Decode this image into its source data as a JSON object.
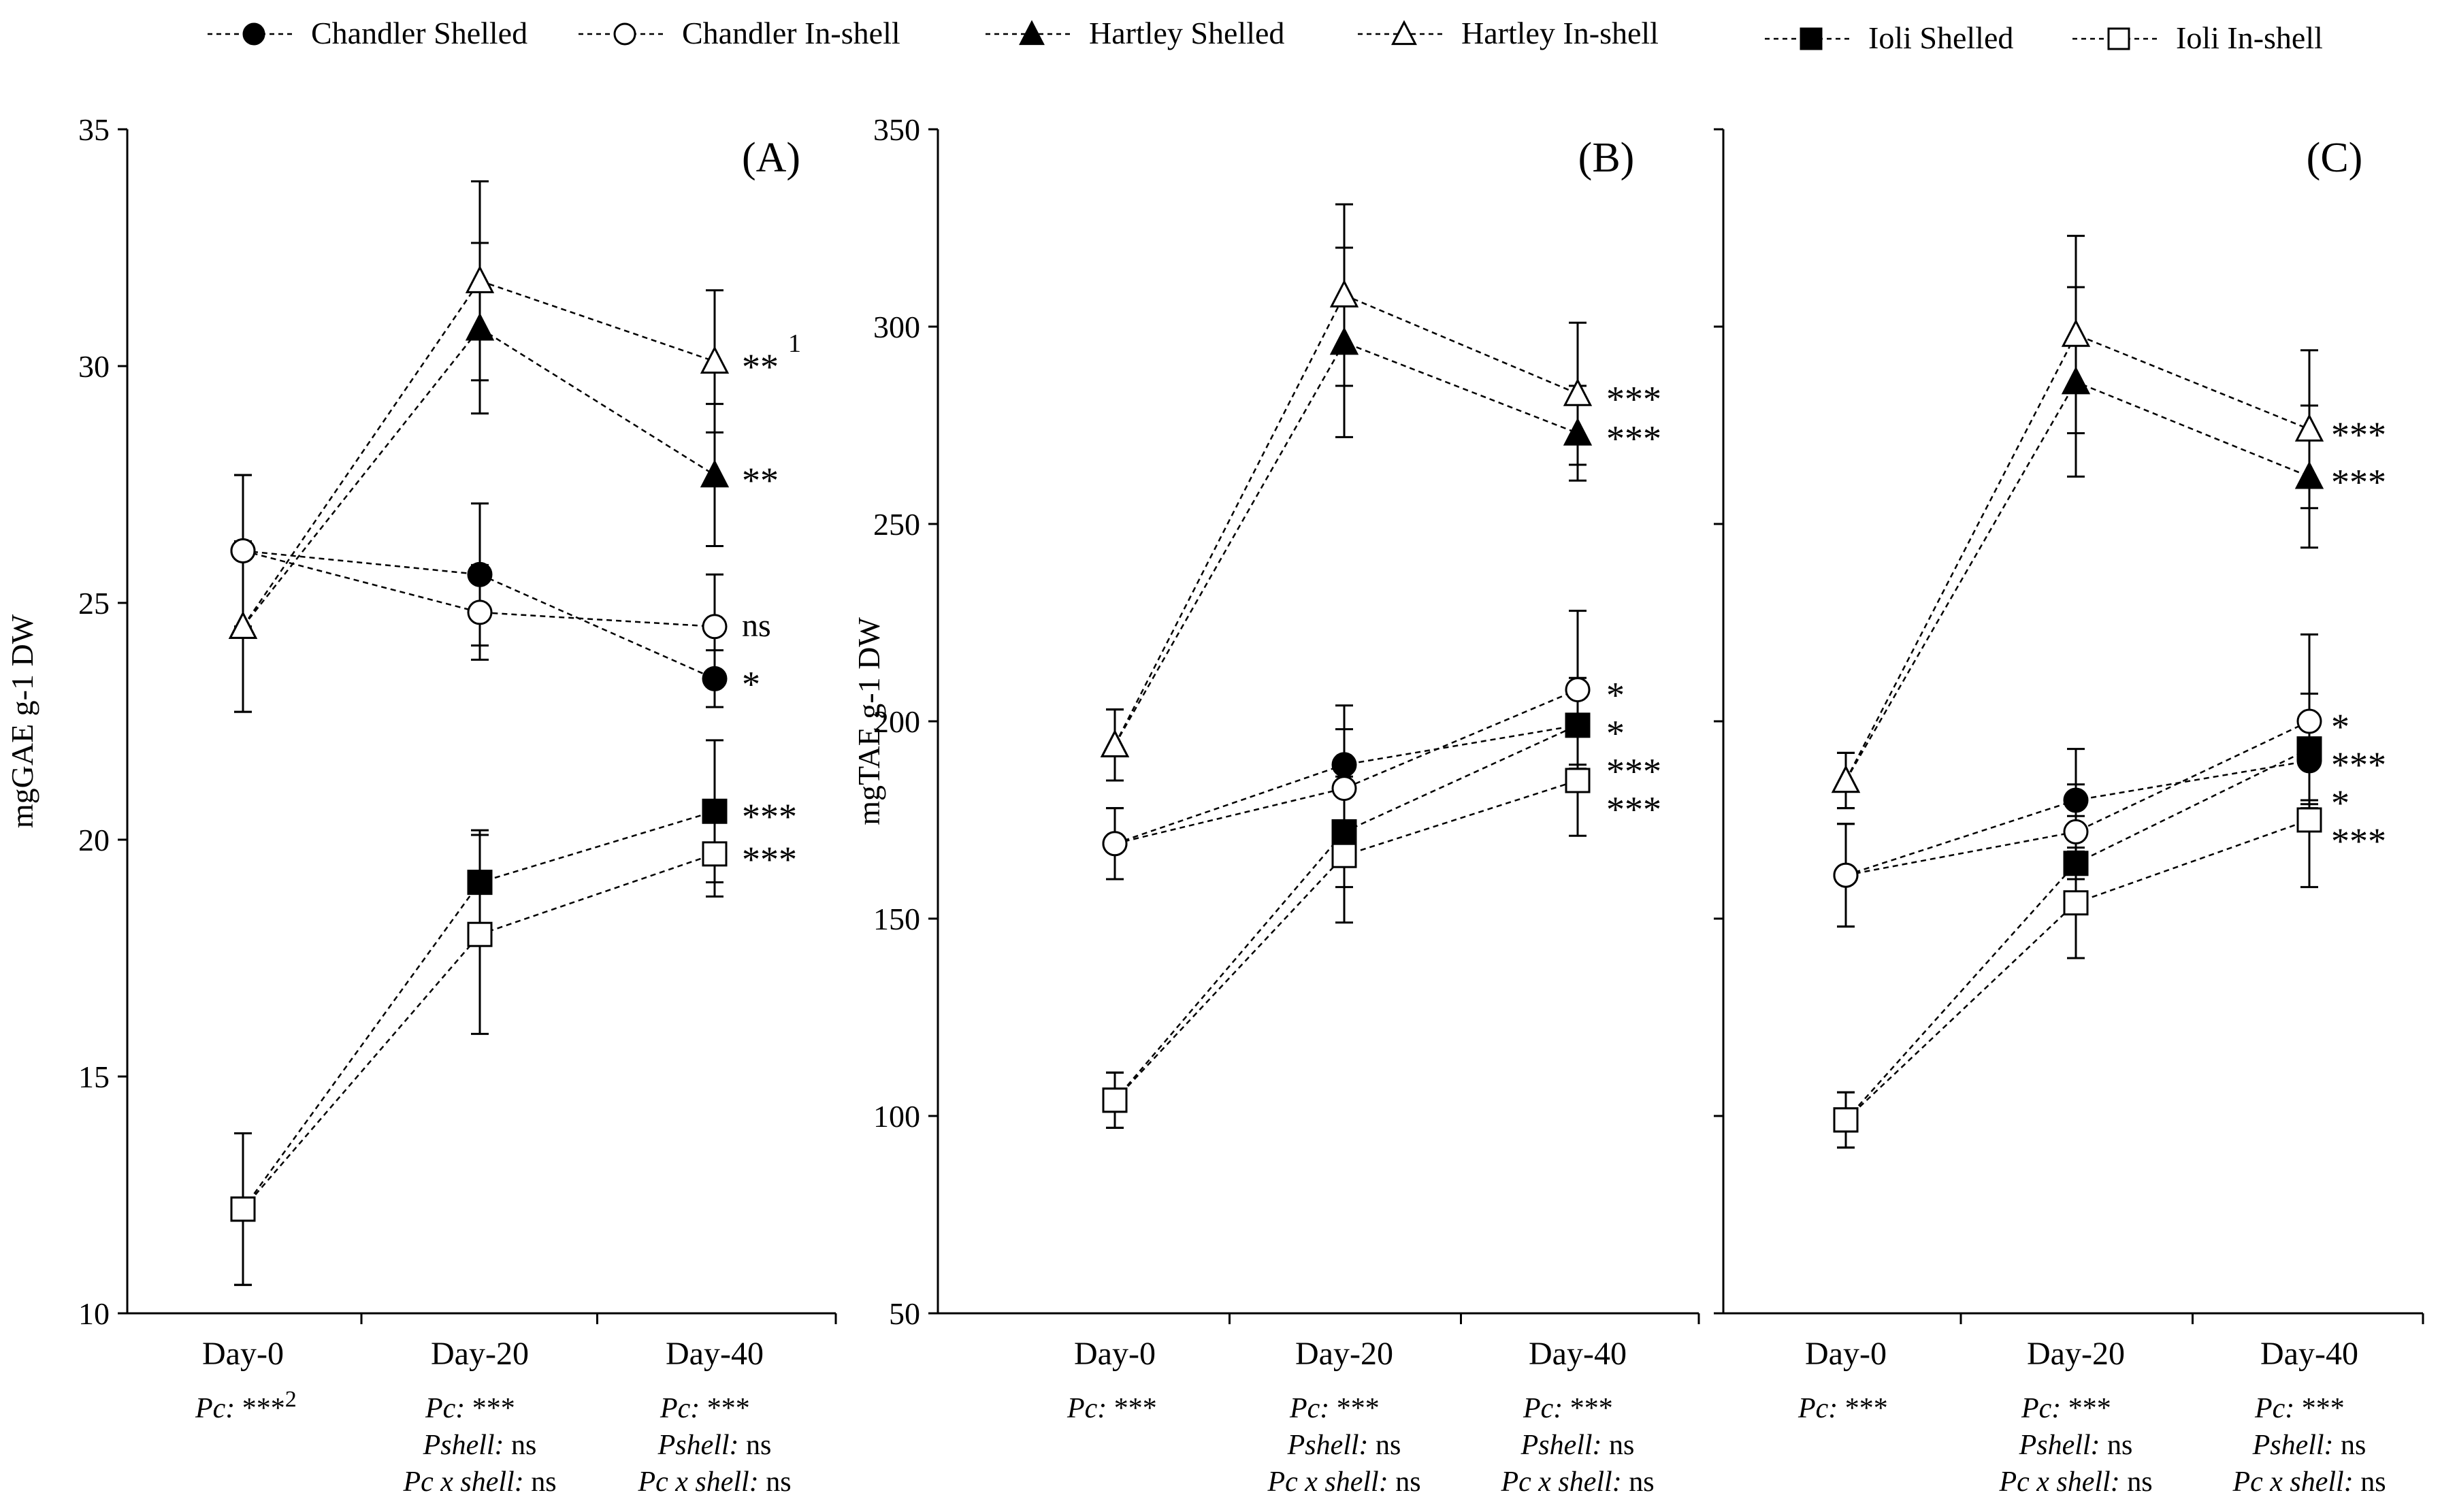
{
  "legend": [
    {
      "label": "Chandler Shelled",
      "marker": "circle",
      "filled": true
    },
    {
      "label": "Chandler In-shell",
      "marker": "circle",
      "filled": false
    },
    {
      "label": "Hartley Shelled",
      "marker": "triangle",
      "filled": true
    },
    {
      "label": "Hartley In-shell",
      "marker": "triangle",
      "filled": false
    },
    {
      "label": "Ioli Shelled",
      "marker": "square",
      "filled": true
    },
    {
      "label": "Ioli In-shell",
      "marker": "square",
      "filled": false
    }
  ],
  "colors": {
    "line": "#000000",
    "background": "#ffffff"
  },
  "chart_data": [
    {
      "type": "line",
      "panel": "(A)",
      "ylabel": "mgGAE g-1 DW",
      "ylim": [
        10,
        35
      ],
      "yticks": [
        "10",
        "15",
        "20",
        "25",
        "30",
        "35"
      ],
      "categories": [
        "Day-0",
        "Day-20",
        "Day-40"
      ],
      "series": [
        {
          "name": "Chandler Shelled",
          "values": [
            26.1,
            25.6,
            23.4
          ],
          "errors": [
            1.6,
            1.5,
            0.6
          ],
          "sig": "*"
        },
        {
          "name": "Chandler In-shell",
          "values": [
            26.1,
            24.8,
            24.5
          ],
          "errors": [
            1.6,
            1.0,
            1.1
          ],
          "sig": "ns"
        },
        {
          "name": "Hartley Shelled",
          "values": [
            24.5,
            30.8,
            27.7
          ],
          "errors": [
            1.8,
            1.8,
            1.5
          ],
          "sig": "**"
        },
        {
          "name": "Hartley In-shell",
          "values": [
            24.5,
            31.8,
            30.1
          ],
          "errors": [
            1.8,
            2.1,
            1.5
          ],
          "sig": "**",
          "sig_note": "1"
        },
        {
          "name": "Ioli Shelled",
          "values": [
            12.2,
            19.1,
            20.6
          ],
          "errors": [
            1.6,
            1.1,
            1.5
          ],
          "sig": "***"
        },
        {
          "name": "Ioli In-shell",
          "values": [
            12.2,
            18.0,
            19.7
          ],
          "errors": [
            1.6,
            2.1,
            0.9
          ],
          "sig": "***"
        }
      ],
      "stats": [
        [
          {
            "key": "Pc:",
            "val": "***",
            "sup": "2"
          }
        ],
        [
          {
            "key": "Pc:",
            "val": "***"
          },
          {
            "key": "Pshell:",
            "val": "ns"
          },
          {
            "key": "Pc x shell:",
            "val": "ns"
          }
        ],
        [
          {
            "key": "Pc:",
            "val": "***"
          },
          {
            "key": "Pshell:",
            "val": "ns"
          },
          {
            "key": "Pc x shell:",
            "val": "ns"
          }
        ]
      ]
    },
    {
      "type": "line",
      "panel": "(B)",
      "ylabel": "mgTAE g-1 DW",
      "ylim": [
        50,
        350
      ],
      "yticks": [
        "50",
        "100",
        "150",
        "200",
        "250",
        "300",
        "350"
      ],
      "categories": [
        "Day-0",
        "Day-20",
        "Day-40"
      ],
      "series": [
        {
          "name": "Chandler Shelled",
          "values": [
            169,
            189,
            199
          ],
          "errors": [
            9,
            15,
            12
          ],
          "sig": "*"
        },
        {
          "name": "Chandler In-shell",
          "values": [
            169,
            183,
            208
          ],
          "errors": [
            9,
            15,
            20
          ],
          "sig": "*"
        },
        {
          "name": "Hartley Shelled",
          "values": [
            194,
            296,
            273
          ],
          "errors": [
            9,
            24,
            12
          ],
          "sig": "***"
        },
        {
          "name": "Hartley In-shell",
          "values": [
            194,
            308,
            283
          ],
          "errors": [
            9,
            23,
            18
          ],
          "sig": "***"
        },
        {
          "name": "Ioli Shelled",
          "values": [
            104,
            172,
            199
          ],
          "errors": [
            7,
            14,
            10
          ],
          "sig": "***"
        },
        {
          "name": "Ioli In-shell",
          "values": [
            104,
            166,
            185
          ],
          "errors": [
            7,
            17,
            14
          ],
          "sig": "***"
        }
      ],
      "stats": [
        [
          {
            "key": "Pc:",
            "val": "***"
          }
        ],
        [
          {
            "key": "Pc:",
            "val": "***"
          },
          {
            "key": "Pshell:",
            "val": "ns"
          },
          {
            "key": "Pc x shell:",
            "val": "ns"
          }
        ],
        [
          {
            "key": "Pc:",
            "val": "***"
          },
          {
            "key": "Pshell:",
            "val": "ns"
          },
          {
            "key": "Pc x shell:",
            "val": "ns"
          }
        ]
      ]
    },
    {
      "type": "line",
      "panel": "(C)",
      "ylabel": "",
      "ylim": [
        50,
        350
      ],
      "yticks": [],
      "categories": [
        "Day-0",
        "Day-20",
        "Day-40"
      ],
      "series": [
        {
          "name": "Chandler Shelled",
          "values": [
            161,
            180,
            190
          ],
          "errors": [
            13,
            13,
            10
          ],
          "sig": "*"
        },
        {
          "name": "Chandler In-shell",
          "values": [
            161,
            172,
            200
          ],
          "errors": [
            13,
            12,
            22
          ],
          "sig": "*"
        },
        {
          "name": "Hartley Shelled",
          "values": [
            185,
            286,
            262
          ],
          "errors": [
            7,
            24,
            18
          ],
          "sig": "***"
        },
        {
          "name": "Hartley In-shell",
          "values": [
            185,
            298,
            274
          ],
          "errors": [
            7,
            25,
            20
          ],
          "sig": "***"
        },
        {
          "name": "Ioli Shelled",
          "values": [
            99,
            164,
            193
          ],
          "errors": [
            7,
            12,
            14
          ],
          "sig": "***"
        },
        {
          "name": "Ioli In-shell",
          "values": [
            99,
            154,
            175
          ],
          "errors": [
            7,
            14,
            17
          ],
          "sig": "***"
        }
      ],
      "stats": [
        [
          {
            "key": "Pc:",
            "val": "***"
          }
        ],
        [
          {
            "key": "Pc:",
            "val": "***"
          },
          {
            "key": "Pshell:",
            "val": "ns"
          },
          {
            "key": "Pc x shell:",
            "val": "ns"
          }
        ],
        [
          {
            "key": "Pc:",
            "val": "***"
          },
          {
            "key": "Pshell:",
            "val": "ns"
          },
          {
            "key": "Pc x shell:",
            "val": "ns"
          }
        ]
      ]
    }
  ]
}
